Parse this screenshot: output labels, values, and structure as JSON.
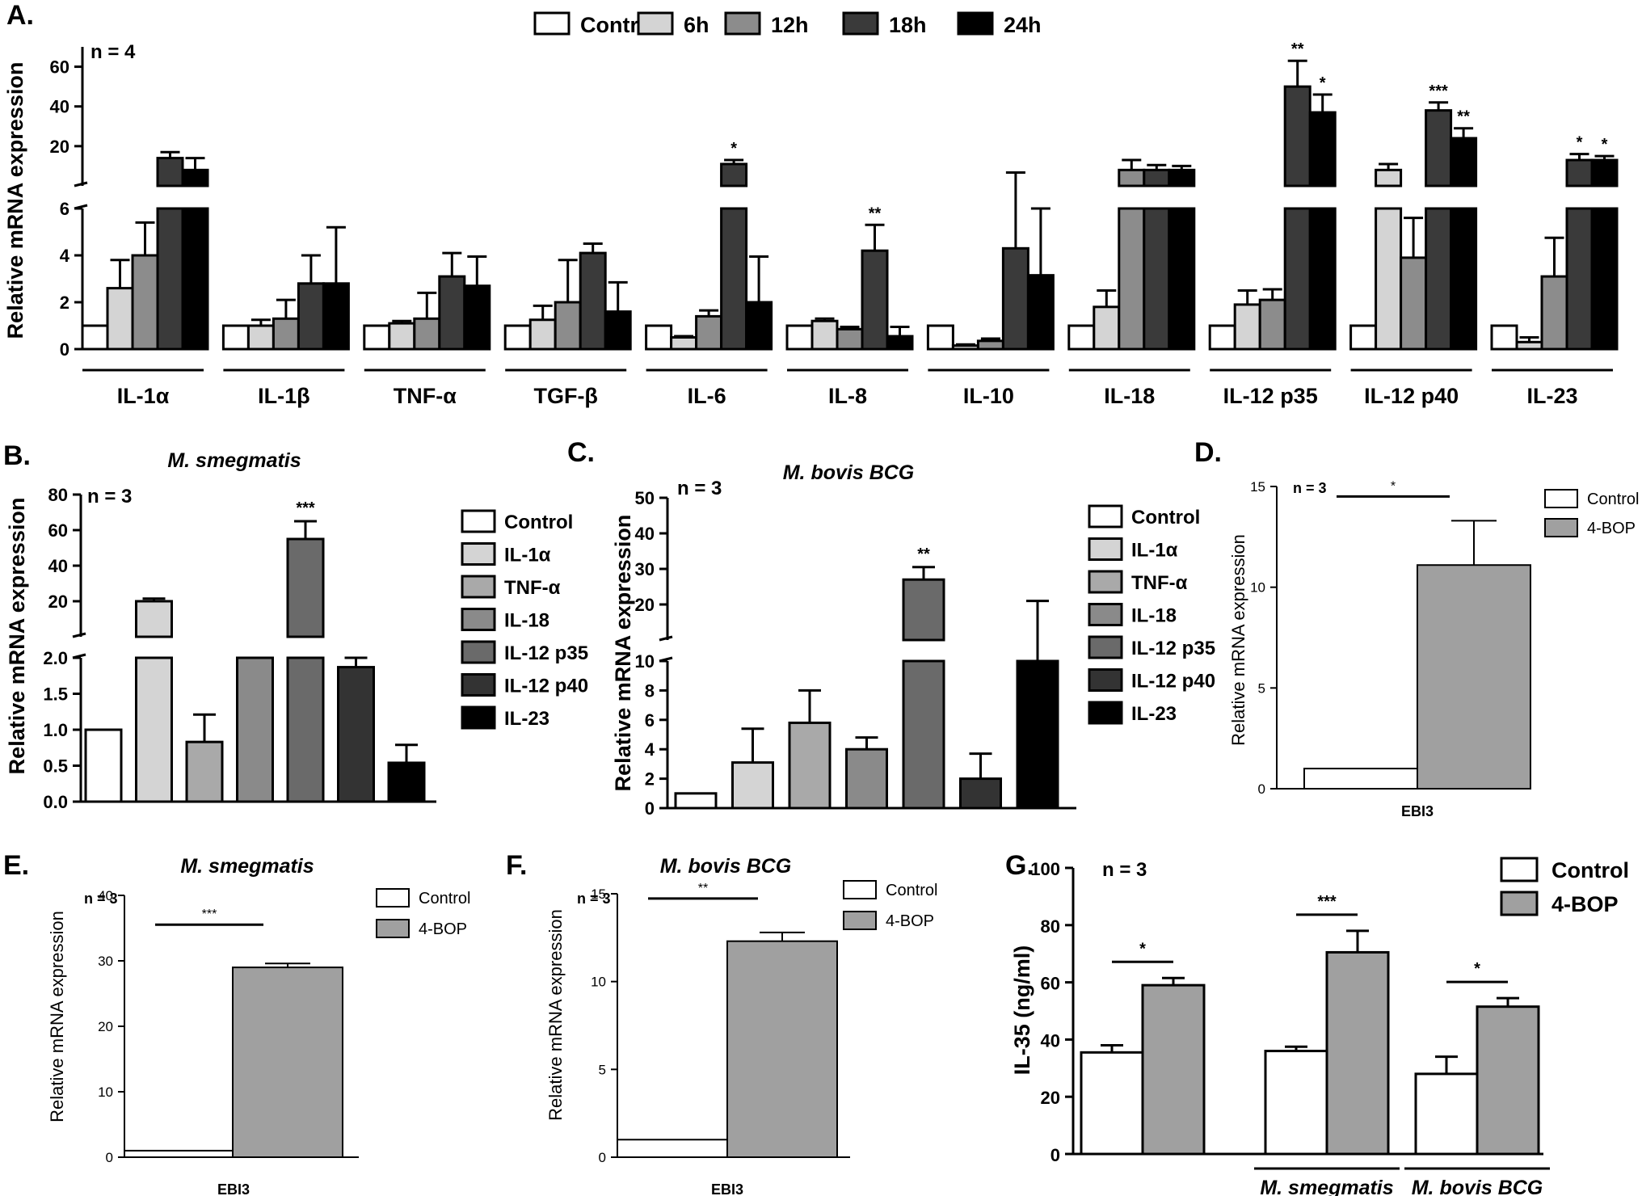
{
  "chart_data": [
    {
      "panel": "A.",
      "type": "bar",
      "n_label": "n = 4",
      "ylabel": "Relative mRNA expression",
      "axis_broken": true,
      "lower_ylim": [
        0,
        6
      ],
      "lower_ticks": [
        "0",
        "2",
        "4",
        "6"
      ],
      "upper_ylim": [
        0,
        70
      ],
      "upper_ticks": [
        "20",
        "40",
        "60"
      ],
      "legend_position": "top",
      "categories": [
        "IL-1α",
        "IL-1β",
        "TNF-α",
        "TGF-β",
        "IL-6",
        "IL-8",
        "IL-10",
        "IL-18",
        "IL-12 p35",
        "IL-12 p40",
        "IL-23"
      ],
      "series": [
        {
          "name": "Control",
          "color": "#ffffff",
          "values": [
            1,
            1,
            1,
            1,
            1,
            1,
            1,
            1,
            1,
            1,
            1
          ],
          "errors": [
            0,
            0,
            0,
            0,
            0,
            0,
            0,
            0,
            0,
            0,
            0
          ]
        },
        {
          "name": "6h",
          "color": "#d4d4d4",
          "values": [
            2.6,
            1.0,
            1.1,
            1.25,
            0.5,
            1.2,
            0.15,
            1.8,
            1.9,
            8,
            0.3
          ],
          "errors": [
            1.2,
            0.25,
            0.1,
            0.6,
            0.05,
            0.1,
            0.05,
            0.7,
            0.6,
            3,
            0.2
          ]
        },
        {
          "name": "12h",
          "color": "#8c8c8c",
          "values": [
            4.0,
            1.3,
            1.3,
            2.0,
            1.4,
            0.85,
            0.35,
            8,
            2.1,
            3.9,
            3.1
          ],
          "errors": [
            1.4,
            0.8,
            1.1,
            1.8,
            0.25,
            0.1,
            0.1,
            5,
            0.45,
            1.7,
            1.65
          ]
        },
        {
          "name": "18h",
          "color": "#3a3a3a",
          "values": [
            14,
            2.8,
            3.1,
            4.1,
            11,
            4.2,
            4.3,
            8,
            50,
            38,
            13
          ],
          "errors": [
            3,
            1.2,
            1.0,
            0.4,
            2,
            1.1,
            2.4,
            2.5,
            13,
            4,
            3
          ]
        },
        {
          "name": "24h",
          "color": "#000000",
          "values": [
            8,
            2.8,
            2.7,
            1.6,
            2.0,
            0.55,
            3.15,
            8,
            37,
            24,
            13
          ],
          "errors": [
            6,
            2.4,
            1.25,
            1.25,
            1.95,
            0.4,
            2.85,
            2,
            9,
            5,
            2
          ]
        }
      ],
      "annotations": [
        {
          "category": "IL-6",
          "series": "18h",
          "text": "*"
        },
        {
          "category": "IL-8",
          "series": "18h",
          "text": "**"
        },
        {
          "category": "IL-12 p35",
          "series": "18h",
          "text": "**"
        },
        {
          "category": "IL-12 p35",
          "series": "24h",
          "text": "*"
        },
        {
          "category": "IL-12 p40",
          "series": "18h",
          "text": "***"
        },
        {
          "category": "IL-12 p40",
          "series": "24h",
          "text": "**"
        },
        {
          "category": "IL-23",
          "series": "18h",
          "text": "*"
        },
        {
          "category": "IL-23",
          "series": "24h",
          "text": "*"
        }
      ]
    },
    {
      "panel": "B.",
      "type": "bar",
      "title": "M. smegmatis",
      "n_label": "n = 3",
      "ylabel": "Relative mRNA expression",
      "axis_broken": true,
      "lower_ylim": [
        0,
        2
      ],
      "lower_ticks": [
        "0.0",
        "0.5",
        "1.0",
        "1.5",
        "2.0"
      ],
      "upper_ylim": [
        0,
        80
      ],
      "upper_ticks": [
        "20",
        "40",
        "60",
        "80"
      ],
      "legend_position": "right",
      "categories": [
        "Control",
        "IL-1α",
        "TNF-α",
        "IL-18",
        "IL-12 p35",
        "IL-12 p40",
        "IL-23"
      ],
      "colors": [
        "#ffffff",
        "#d4d4d4",
        "#a9a9a9",
        "#8a8a8a",
        "#6a6a6a",
        "#333333",
        "#000000"
      ],
      "values": [
        1.0,
        20,
        0.83,
        2.0,
        55,
        1.87,
        0.54
      ],
      "errors": [
        0,
        1.5,
        0.38,
        0,
        10,
        0.13,
        0.25
      ],
      "annotations": [
        {
          "category": "IL-12 p35",
          "text": "***"
        }
      ]
    },
    {
      "panel": "C.",
      "type": "bar",
      "title": "M. bovis BCG",
      "n_label": "n = 3",
      "ylabel": "Relative mRNA expression",
      "axis_broken": true,
      "lower_ylim": [
        0,
        10
      ],
      "lower_ticks": [
        "0",
        "2",
        "4",
        "6",
        "8",
        "10"
      ],
      "upper_ylim": [
        0,
        50
      ],
      "upper_ticks": [
        "20",
        "30",
        "40",
        "50"
      ],
      "legend_position": "right",
      "categories": [
        "Control",
        "IL-1α",
        "TNF-α",
        "IL-18",
        "IL-12 p35",
        "IL-12 p40",
        "IL-23"
      ],
      "colors": [
        "#ffffff",
        "#d4d4d4",
        "#a9a9a9",
        "#8a8a8a",
        "#6a6a6a",
        "#333333",
        "#000000"
      ],
      "values": [
        1.0,
        3.1,
        5.8,
        4.0,
        27,
        2.0,
        10
      ],
      "errors": [
        0,
        2.3,
        2.2,
        0.8,
        3.5,
        1.7,
        11
      ],
      "annotations": [
        {
          "category": "IL-12 p35",
          "text": "**"
        }
      ]
    },
    {
      "panel": "D.",
      "type": "bar",
      "n_label": "n = 3",
      "ylabel": "Relative mRNA expression",
      "xlabel": "EBI3",
      "ylim": [
        0,
        15
      ],
      "ticks": [
        "0",
        "5",
        "10",
        "15"
      ],
      "legend_position": "top-right",
      "series": [
        {
          "name": "Control",
          "color": "#ffffff",
          "value": 1.0,
          "error": 0
        },
        {
          "name": "4-BOP",
          "color": "#a0a0a0",
          "value": 11.1,
          "error": 2.2
        }
      ],
      "significance": "*"
    },
    {
      "panel": "E.",
      "type": "bar",
      "title": "M. smegmatis",
      "n_label": "n = 3",
      "ylabel": "Relative mRNA expression",
      "xlabel": "EBI3",
      "ylim": [
        0,
        40
      ],
      "ticks": [
        "0",
        "10",
        "20",
        "30",
        "40"
      ],
      "legend_position": "top-right",
      "series": [
        {
          "name": "Control",
          "color": "#ffffff",
          "value": 1.0,
          "error": 0
        },
        {
          "name": "4-BOP",
          "color": "#a0a0a0",
          "value": 29,
          "error": 0.6
        }
      ],
      "significance": "***"
    },
    {
      "panel": "F.",
      "type": "bar",
      "title": "M. bovis BCG",
      "n_label": "n = 3",
      "ylabel": "Relative mRNA expression",
      "xlabel": "EBI3",
      "ylim": [
        0,
        15
      ],
      "ticks": [
        "0",
        "5",
        "10",
        "15"
      ],
      "legend_position": "top-right",
      "series": [
        {
          "name": "Control",
          "color": "#ffffff",
          "value": 1.0,
          "error": 0
        },
        {
          "name": "4-BOP",
          "color": "#a0a0a0",
          "value": 12.3,
          "error": 0.5
        }
      ],
      "significance": "**"
    },
    {
      "panel": "G.",
      "type": "bar",
      "n_label": "n = 3",
      "ylabel": "IL-35 (ng/ml)",
      "ylim": [
        0,
        100
      ],
      "ticks": [
        "0",
        "20",
        "40",
        "60",
        "80",
        "100"
      ],
      "legend_position": "top-right",
      "groups": [
        "",
        "M. smegmatis",
        "M. bovis BCG"
      ],
      "series": [
        {
          "name": "Control",
          "color": "#ffffff",
          "values": [
            35.5,
            36,
            28
          ],
          "errors": [
            2.5,
            1.5,
            6
          ]
        },
        {
          "name": "4-BOP",
          "color": "#a0a0a0",
          "values": [
            59,
            70.5,
            51.5
          ],
          "errors": [
            2.5,
            7.5,
            3
          ]
        }
      ],
      "significance": [
        "*",
        "***",
        "*"
      ]
    }
  ]
}
